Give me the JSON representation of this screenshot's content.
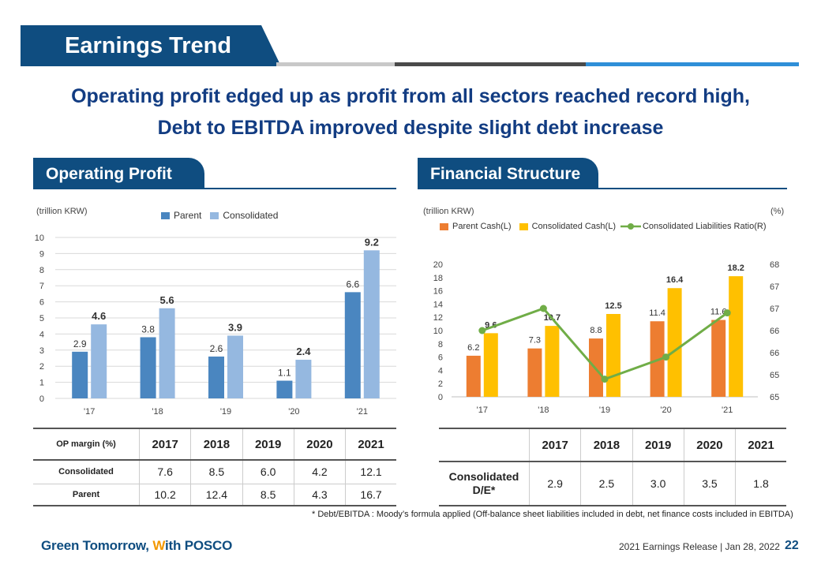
{
  "header": {
    "title": "Earnings Trend"
  },
  "headline": {
    "line1": "Operating profit edged up as profit from all sectors reached record high,",
    "line2": "Debt to EBITDA improved despite slight debt increase"
  },
  "colors": {
    "navy": "#0f4d80",
    "parent_bar": "#4a86c0",
    "consolidated_bar": "#95b8e0",
    "parent_cash": "#ed7d31",
    "cons_cash": "#ffc000",
    "ratio_line": "#70ad47"
  },
  "sections": {
    "left": "Operating Profit",
    "right": "Financial Structure"
  },
  "op_chart": {
    "unit": "(trillion KRW)",
    "legend": {
      "parent": "Parent",
      "consolidated": "Consolidated"
    }
  },
  "fs_chart": {
    "unit_left": "(trillion KRW)",
    "unit_right": "(%)",
    "legend": {
      "parent": "Parent Cash(L)",
      "consolidated": "Consolidated Cash(L)",
      "ratio": "Consolidated Liabilities Ratio(R)"
    }
  },
  "chart_data": [
    {
      "type": "bar",
      "title": "Operating Profit",
      "ylabel": "(trillion KRW)",
      "categories": [
        "'17",
        "'18",
        "'19",
        "'20",
        "'21"
      ],
      "series": [
        {
          "name": "Parent",
          "values": [
            2.9,
            3.8,
            2.6,
            1.1,
            6.6
          ]
        },
        {
          "name": "Consolidated",
          "values": [
            4.6,
            5.6,
            3.9,
            2.4,
            9.2
          ]
        }
      ],
      "ylim": [
        0,
        10
      ],
      "yticks": [
        0,
        1,
        2,
        3,
        4,
        5,
        6,
        7,
        8,
        9,
        10
      ],
      "grid": true,
      "legend": "top"
    },
    {
      "type": "bar",
      "title": "Financial Structure",
      "ylabel": "(trillion KRW)",
      "y2label": "(%)",
      "categories": [
        "'17",
        "'18",
        "'19",
        "'20",
        "'21"
      ],
      "series": [
        {
          "name": "Parent Cash(L)",
          "values": [
            6.2,
            7.3,
            8.8,
            11.4,
            11.6
          ]
        },
        {
          "name": "Consolidated Cash(L)",
          "values": [
            9.6,
            10.7,
            12.5,
            16.4,
            18.2
          ]
        },
        {
          "name": "Consolidated Liabilities Ratio(R)",
          "type": "line",
          "axis": "right",
          "values": [
            66.5,
            67.0,
            65.4,
            65.9,
            66.9
          ]
        }
      ],
      "ylim": [
        0,
        20
      ],
      "yticks": [
        0,
        2,
        4,
        6,
        8,
        10,
        12,
        14,
        16,
        18,
        20
      ],
      "y2lim": [
        65,
        68
      ],
      "y2ticks": [
        "65",
        "65",
        "66",
        "66",
        "67",
        "67",
        "68"
      ],
      "grid": false,
      "legend": "top"
    }
  ],
  "op_table": {
    "header": [
      "OP margin (%)",
      "2017",
      "2018",
      "2019",
      "2020",
      "2021"
    ],
    "rows": [
      {
        "label": "Consolidated",
        "values": [
          "7.6",
          "8.5",
          "6.0",
          "4.2",
          "12.1"
        ]
      },
      {
        "label": "Parent",
        "values": [
          "10.2",
          "12.4",
          "8.5",
          "4.3",
          "16.7"
        ]
      }
    ]
  },
  "fs_table": {
    "header": [
      "",
      "2017",
      "2018",
      "2019",
      "2020",
      "2021"
    ],
    "row_label_1": "Consolidated",
    "row_label_2": "D/E*",
    "values": [
      "2.9",
      "2.5",
      "3.0",
      "3.5",
      "1.8"
    ]
  },
  "footnote": "* Debt/EBITDA : Moody’s formula applied (Off-balance sheet liabilities included in debt, net finance costs included in EBITDA)",
  "footer": {
    "brand_a": "Green Tomorrow, ",
    "brand_w": "W",
    "brand_b": "ith POSCO",
    "release": "2021 Earnings Release | Jan 28, 2022",
    "page": "22"
  }
}
